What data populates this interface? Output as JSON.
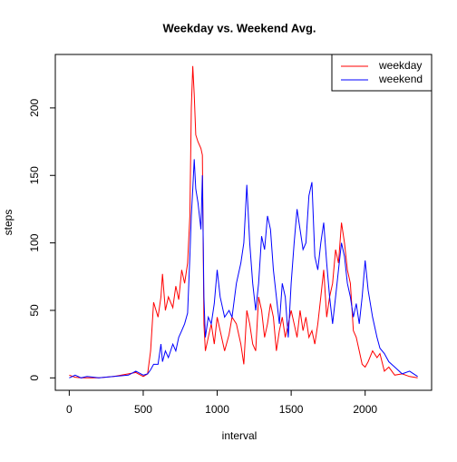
{
  "chart_data": {
    "type": "line",
    "title": "Weekday vs. Weekend Avg.",
    "x_label": "interval",
    "y_label": "steps",
    "x": [
      0,
      40,
      80,
      120,
      200,
      300,
      400,
      450,
      500,
      530,
      550,
      570,
      600,
      620,
      630,
      650,
      670,
      700,
      720,
      740,
      760,
      780,
      800,
      815,
      825,
      835,
      845,
      855,
      870,
      890,
      900,
      910,
      920,
      940,
      960,
      980,
      1000,
      1020,
      1050,
      1080,
      1100,
      1130,
      1160,
      1180,
      1200,
      1220,
      1240,
      1260,
      1280,
      1300,
      1320,
      1340,
      1360,
      1380,
      1400,
      1420,
      1440,
      1460,
      1480,
      1500,
      1520,
      1540,
      1560,
      1580,
      1600,
      1620,
      1640,
      1660,
      1680,
      1700,
      1720,
      1740,
      1760,
      1780,
      1800,
      1820,
      1840,
      1860,
      1880,
      1900,
      1920,
      1940,
      1960,
      1980,
      2000,
      2020,
      2050,
      2080,
      2100,
      2130,
      2160,
      2200,
      2250,
      2300,
      2355
    ],
    "series": [
      {
        "name": "weekday",
        "color": "#ff0000",
        "values": [
          2,
          0.5,
          0,
          0,
          0,
          1,
          3,
          4,
          1,
          3,
          20,
          56,
          45,
          60,
          77,
          50,
          60,
          52,
          68,
          58,
          80,
          70,
          85,
          120,
          200,
          231,
          210,
          180,
          175,
          170,
          165,
          40,
          20,
          30,
          40,
          25,
          45,
          35,
          20,
          32,
          45,
          40,
          25,
          10,
          50,
          40,
          25,
          20,
          60,
          50,
          30,
          40,
          55,
          45,
          20,
          35,
          45,
          30,
          40,
          50,
          40,
          30,
          50,
          35,
          45,
          30,
          35,
          25,
          40,
          60,
          80,
          45,
          60,
          70,
          95,
          85,
          115,
          100,
          80,
          70,
          35,
          30,
          20,
          10,
          8,
          12,
          20,
          15,
          18,
          5,
          8,
          2,
          3,
          1,
          0
        ]
      },
      {
        "name": "weekend",
        "color": "#0000ff",
        "values": [
          0,
          2,
          0,
          1,
          0,
          1,
          2,
          5,
          2,
          3,
          6,
          10,
          10,
          25,
          12,
          20,
          15,
          25,
          20,
          30,
          35,
          40,
          48,
          90,
          120,
          140,
          162,
          140,
          130,
          110,
          150,
          60,
          30,
          45,
          40,
          55,
          80,
          60,
          45,
          50,
          45,
          70,
          85,
          100,
          143,
          100,
          70,
          50,
          70,
          105,
          95,
          120,
          110,
          80,
          60,
          40,
          70,
          60,
          30,
          70,
          100,
          125,
          110,
          95,
          100,
          135,
          145,
          90,
          80,
          100,
          115,
          85,
          60,
          40,
          60,
          80,
          100,
          90,
          70,
          60,
          45,
          55,
          40,
          60,
          87,
          65,
          45,
          30,
          22,
          18,
          12,
          8,
          3,
          5,
          1
        ]
      }
    ],
    "xlim": [
      -94.2,
      2449.2
    ],
    "ylim": [
      -9.2,
      239.6
    ],
    "xticks": [
      0,
      500,
      1000,
      1500,
      2000
    ],
    "yticks": [
      0,
      50,
      100,
      150,
      200
    ],
    "legend": "topright",
    "grid": false
  }
}
